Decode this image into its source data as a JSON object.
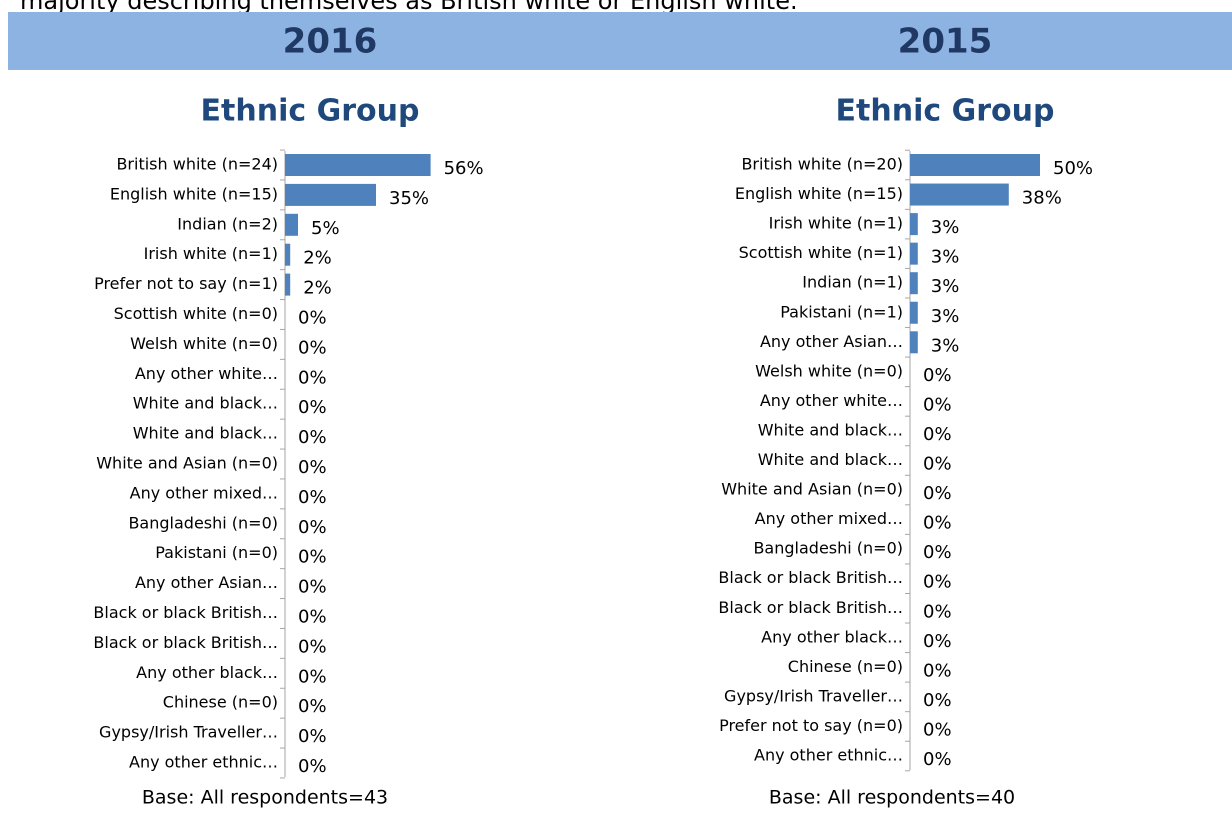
{
  "header": {
    "intro": "majority describing themselves as British white or English white."
  },
  "chart_data": [
    {
      "type": "bar",
      "orientation": "horizontal",
      "panel": "2016",
      "title": "Ethnic Group",
      "color": "#4f81bd",
      "categories": [
        "British white (n=24)",
        "English white (n=15)",
        "Indian (n=2)",
        "Irish white (n=1)",
        "Prefer not to say (n=1)",
        "Scottish white (n=0)",
        "Welsh white (n=0)",
        "Any other white…",
        "White and black…",
        "White and black…",
        "White and Asian (n=0)",
        "Any other mixed…",
        "Bangladeshi (n=0)",
        "Pakistani (n=0)",
        "Any other Asian…",
        "Black or black British…",
        "Black or black British…",
        "Any other black…",
        "Chinese (n=0)",
        "Gypsy/Irish Traveller…",
        "Any other ethnic…"
      ],
      "values": [
        56,
        35,
        5,
        2,
        2,
        0,
        0,
        0,
        0,
        0,
        0,
        0,
        0,
        0,
        0,
        0,
        0,
        0,
        0,
        0,
        0
      ],
      "value_labels": [
        "56%",
        "35%",
        "5%",
        "2%",
        "2%",
        "0%",
        "0%",
        "0%",
        "0%",
        "0%",
        "0%",
        "0%",
        "0%",
        "0%",
        "0%",
        "0%",
        "0%",
        "0%",
        "0%",
        "0%",
        "0%"
      ],
      "note": "Base: All respondents=43"
    },
    {
      "type": "bar",
      "orientation": "horizontal",
      "panel": "2015",
      "title": "Ethnic Group",
      "color": "#4f81bd",
      "categories": [
        "British white (n=20)",
        "English white (n=15)",
        "Irish white (n=1)",
        "Scottish white (n=1)",
        "Indian (n=1)",
        "Pakistani (n=1)",
        "Any other Asian…",
        "Welsh white (n=0)",
        "Any other white…",
        "White and black…",
        "White and black…",
        "White and Asian (n=0)",
        "Any other mixed…",
        "Bangladeshi (n=0)",
        "Black or black British…",
        "Black or black British…",
        "Any other black…",
        "Chinese (n=0)",
        "Gypsy/Irish Traveller…",
        "Prefer not to say (n=0)",
        "Any other ethnic…"
      ],
      "values": [
        50,
        38,
        3,
        3,
        3,
        3,
        3,
        0,
        0,
        0,
        0,
        0,
        0,
        0,
        0,
        0,
        0,
        0,
        0,
        0,
        0
      ],
      "value_labels": [
        "50%",
        "38%",
        "3%",
        "3%",
        "3%",
        "3%",
        "3%",
        "0%",
        "0%",
        "0%",
        "0%",
        "0%",
        "0%",
        "0%",
        "0%",
        "0%",
        "0%",
        "0%",
        "0%",
        "0%",
        "0%"
      ],
      "note": "Base: All respondents=40"
    }
  ]
}
